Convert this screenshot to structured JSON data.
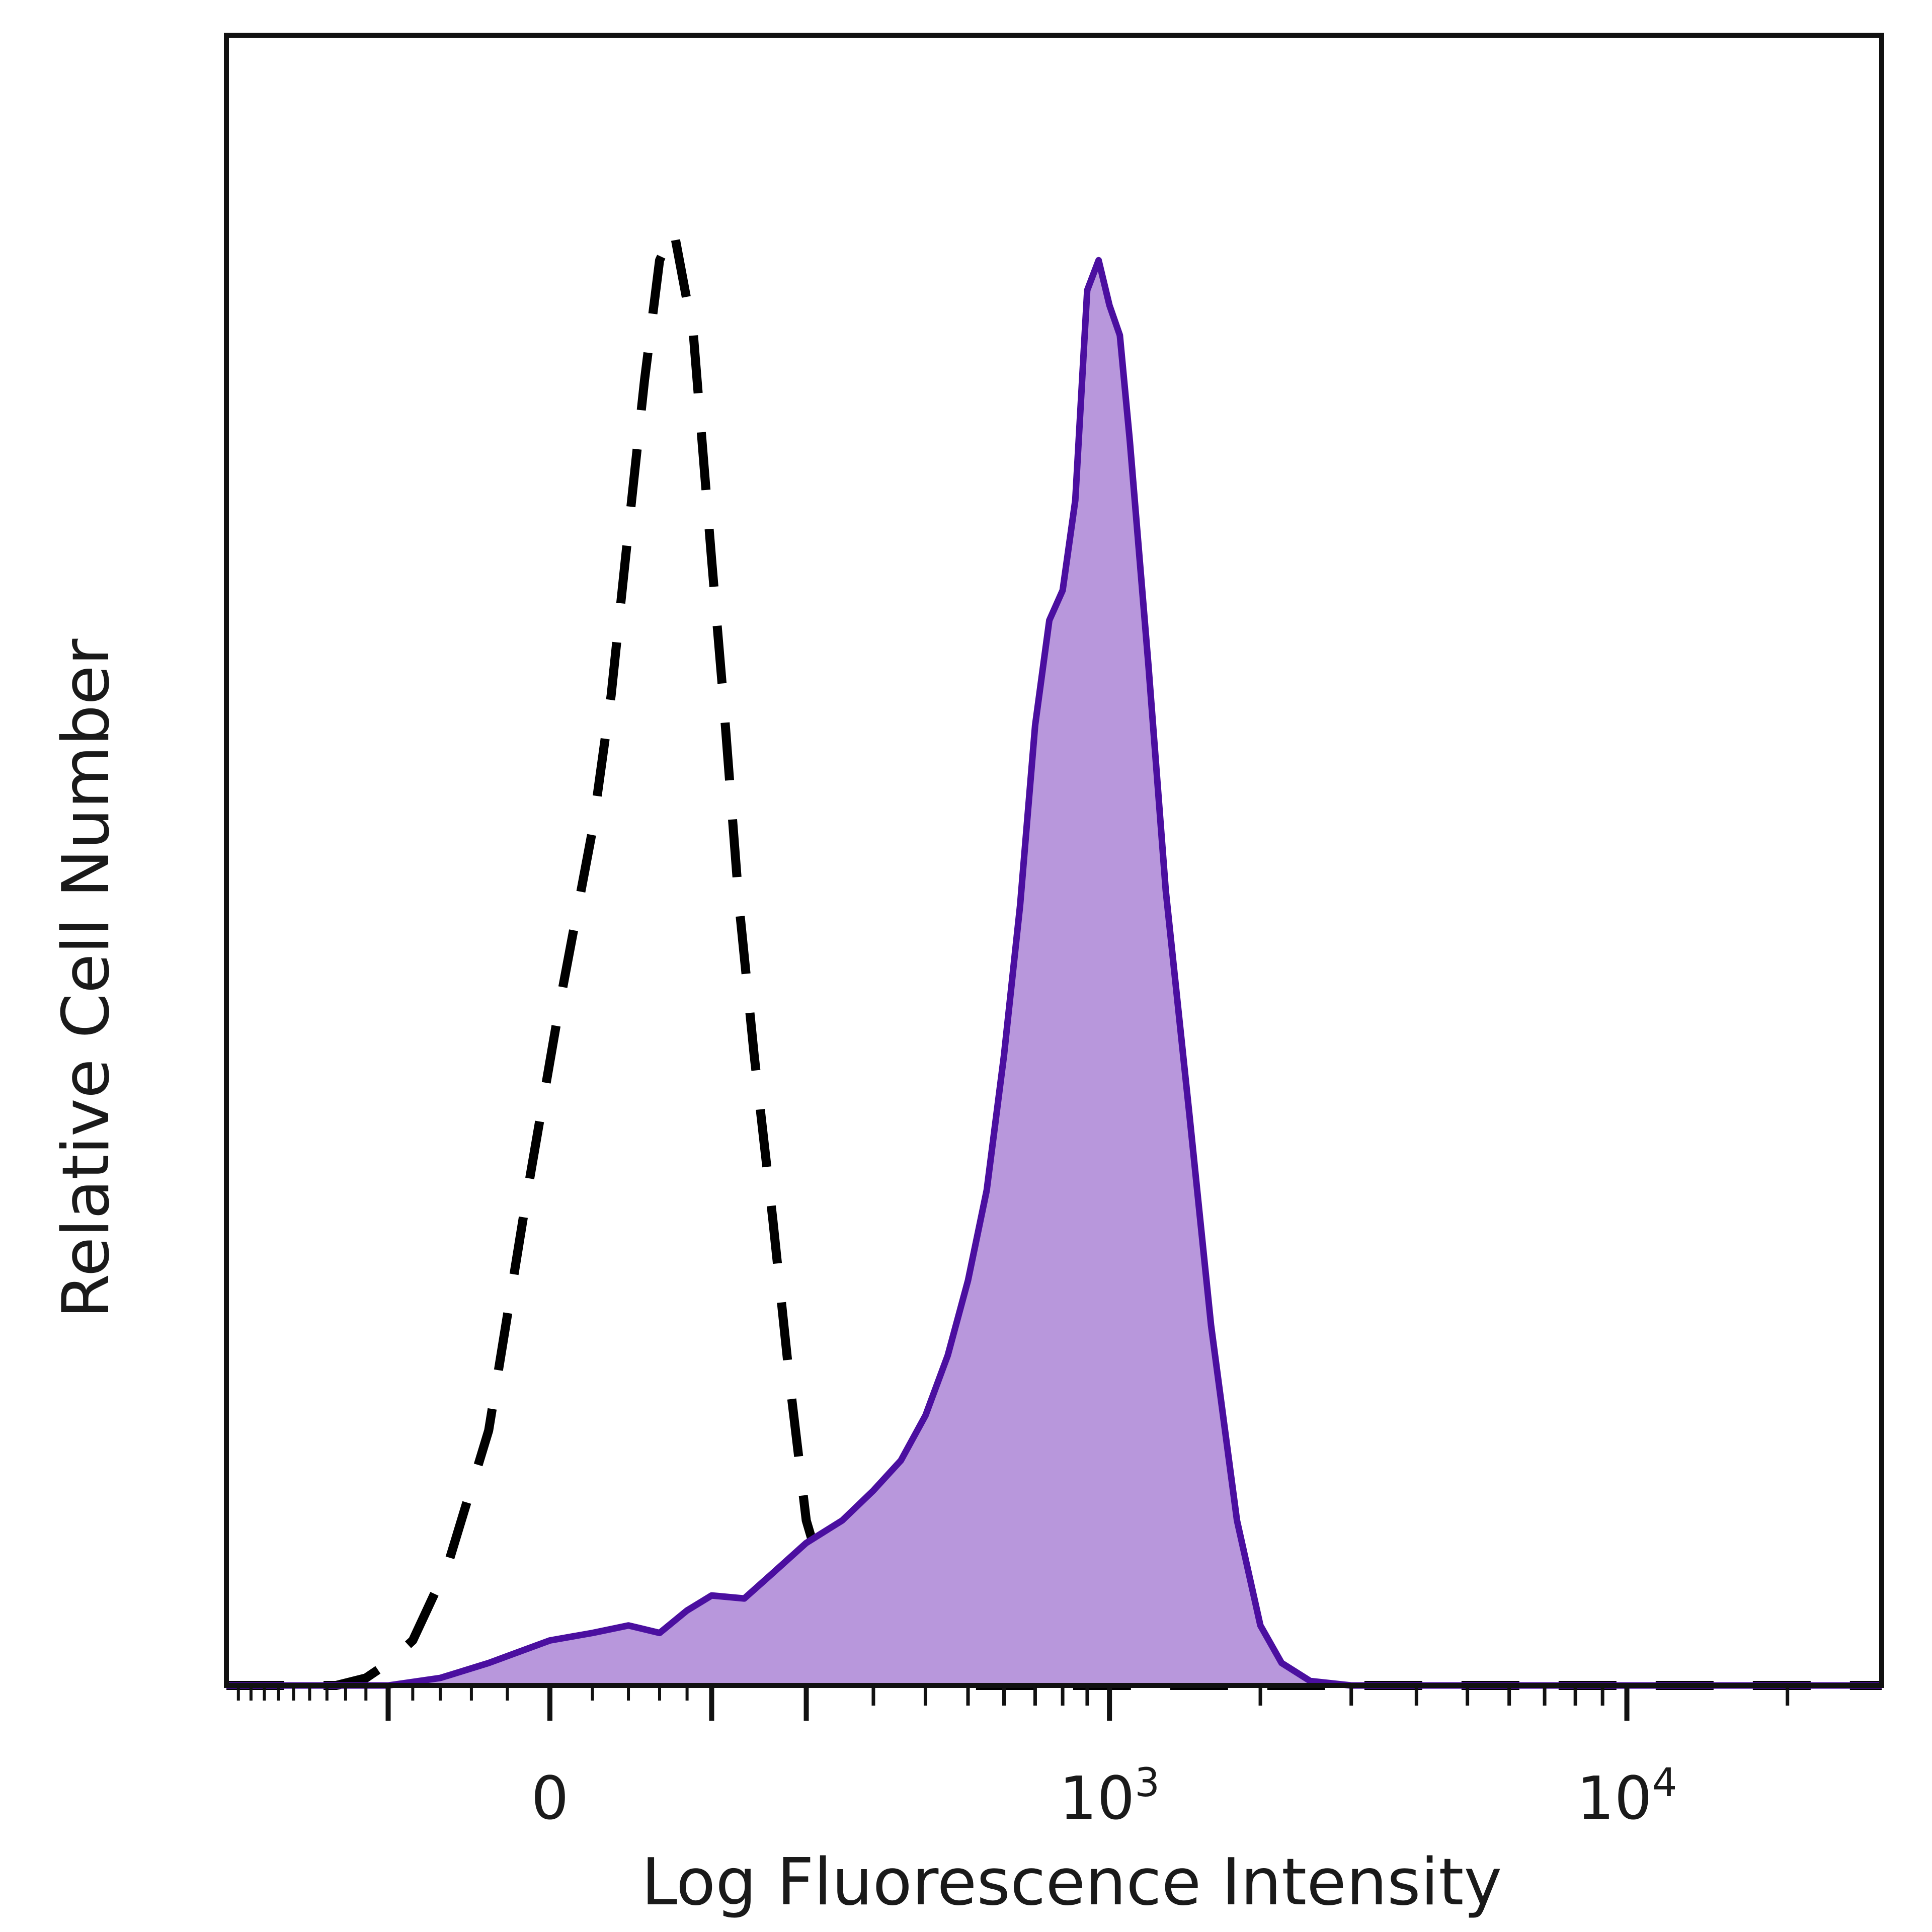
{
  "chart_data": {
    "type": "area",
    "title": "",
    "xlabel": "Log Fluorescence Intensity",
    "ylabel": "Relative Cell Number",
    "x_scale": "biexponential",
    "xlim": [
      -300,
      30000
    ],
    "ylim": [
      0,
      110
    ],
    "grid": false,
    "legend": "none",
    "x_tick_labels": [
      {
        "value": 0,
        "base": "0",
        "exp": ""
      },
      {
        "value": 1000,
        "base": "10",
        "exp": "3"
      },
      {
        "value": 10000,
        "base": "10",
        "exp": "4"
      }
    ],
    "x_major_ticks": [
      -100,
      0,
      100,
      200,
      1000,
      10000
    ],
    "x_minor_ticks": [
      300,
      400,
      500,
      600,
      700,
      800,
      900,
      2000,
      3000,
      4000,
      5000,
      6000,
      7000,
      8000,
      9000,
      20000
    ],
    "series": [
      {
        "style": "dashed",
        "color": "#000000",
        "fill": "none",
        "x": [
          -300,
          -150,
          -120,
          -100,
          -80,
          -55,
          -30,
          -10,
          5,
          20,
          30,
          40,
          50,
          60,
          70,
          85,
          100,
          110,
          125,
          140,
          160,
          180,
          200,
          230,
          270,
          320,
          370,
          500,
          1000,
          10000,
          30000
        ],
        "y": [
          0,
          0,
          0.5,
          1.5,
          3,
          8,
          17,
          33,
          46,
          57,
          66,
          77,
          87,
          95,
          97,
          90,
          75,
          66,
          52,
          42,
          31,
          20,
          11,
          6,
          3,
          1,
          0.3,
          0,
          0,
          0,
          0
        ]
      },
      {
        "style": "solid",
        "color": "#4b0fa0",
        "fill": "#b897dc",
        "x": [
          -300,
          -100,
          -60,
          -30,
          0,
          20,
          40,
          60,
          80,
          100,
          130,
          160,
          200,
          250,
          300,
          350,
          400,
          450,
          500,
          550,
          600,
          650,
          700,
          750,
          800,
          850,
          900,
          950,
          1000,
          1050,
          1100,
          1200,
          1300,
          1450,
          1600,
          1800,
          2000,
          2200,
          2500,
          3000,
          3500,
          10000,
          30000
        ],
        "y": [
          0,
          0,
          0.5,
          1.5,
          3,
          3.5,
          4,
          3.5,
          5,
          6,
          5.8,
          7.5,
          9.5,
          11,
          13,
          15,
          18,
          22,
          27,
          33,
          42,
          52,
          64,
          71,
          73,
          79,
          93,
          95,
          92,
          90,
          83,
          68,
          53,
          38,
          24,
          11,
          4,
          1.5,
          0.3,
          0,
          0,
          0,
          0
        ]
      }
    ]
  }
}
